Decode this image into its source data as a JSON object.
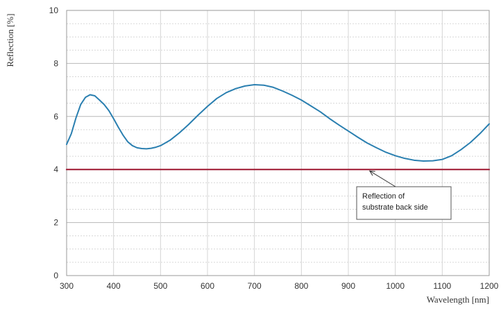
{
  "chart_data": {
    "type": "line",
    "xlabel": "Wavelength [nm]",
    "ylabel": "Reflection [%]",
    "xlim": [
      300,
      1200
    ],
    "ylim": [
      0,
      10
    ],
    "xticks": [
      300,
      400,
      500,
      600,
      700,
      800,
      900,
      1000,
      1100,
      1200
    ],
    "yticks": [
      0,
      2,
      4,
      6,
      8,
      10
    ],
    "grid": true,
    "series": [
      {
        "color": "#2a7fb0",
        "x": [
          300,
          310,
          320,
          330,
          340,
          350,
          360,
          370,
          380,
          390,
          400,
          410,
          420,
          430,
          440,
          450,
          460,
          470,
          480,
          490,
          500,
          520,
          540,
          560,
          580,
          600,
          620,
          640,
          660,
          680,
          700,
          720,
          740,
          760,
          780,
          800,
          820,
          840,
          860,
          880,
          900,
          920,
          940,
          960,
          980,
          1000,
          1020,
          1040,
          1060,
          1080,
          1100,
          1120,
          1140,
          1160,
          1180,
          1200
        ],
        "y": [
          4.95,
          5.35,
          5.95,
          6.45,
          6.72,
          6.82,
          6.78,
          6.62,
          6.45,
          6.22,
          5.92,
          5.6,
          5.3,
          5.05,
          4.9,
          4.82,
          4.79,
          4.78,
          4.8,
          4.84,
          4.9,
          5.1,
          5.38,
          5.7,
          6.05,
          6.38,
          6.68,
          6.9,
          7.05,
          7.15,
          7.2,
          7.18,
          7.1,
          6.96,
          6.8,
          6.62,
          6.4,
          6.18,
          5.92,
          5.68,
          5.45,
          5.22,
          5.0,
          4.82,
          4.65,
          4.52,
          4.42,
          4.35,
          4.32,
          4.33,
          4.38,
          4.52,
          4.75,
          5.02,
          5.35,
          5.72
        ]
      },
      {
        "color": "#a3223a",
        "x": [
          300,
          1200
        ],
        "y": [
          4.0,
          4.0
        ]
      }
    ],
    "annotations": [
      {
        "lines": [
          "Reflection of",
          "substrate back side"
        ],
        "points_to": {
          "x": 975,
          "y": 4.0
        }
      }
    ]
  }
}
